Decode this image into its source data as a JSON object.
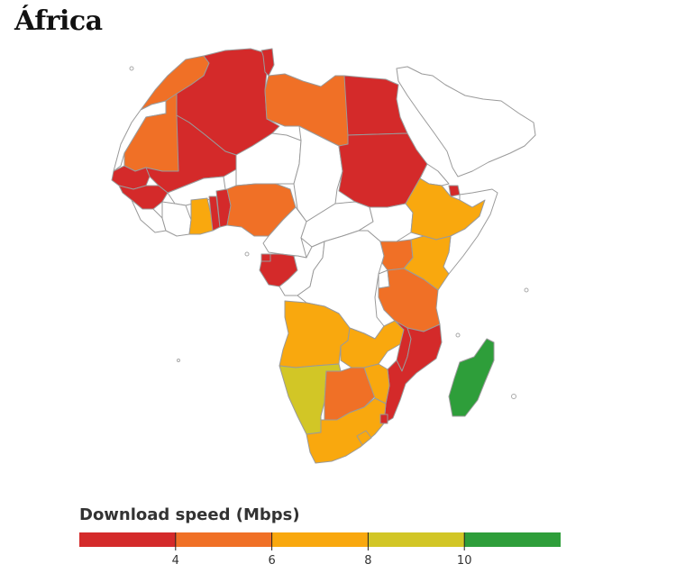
{
  "title": "África",
  "legend": {
    "title": "Download speed (Mbps)",
    "domain": [
      2,
      12
    ],
    "bins": [
      {
        "from": 2,
        "to": 4,
        "color": "#d42a2a"
      },
      {
        "from": 4,
        "to": 6,
        "color": "#f07026"
      },
      {
        "from": 6,
        "to": 8,
        "color": "#f9a80e"
      },
      {
        "from": 8,
        "to": 10,
        "color": "#d2c626"
      },
      {
        "from": 10,
        "to": 12,
        "color": "#2e9e3a"
      }
    ],
    "ticks": [
      4,
      6,
      8,
      10
    ]
  },
  "colors": {
    "no_data": "#ffffff",
    "red": "#d42a2a",
    "orange": "#f07026",
    "amber": "#f9a80e",
    "olive": "#d2c626",
    "green": "#2e9e3a",
    "border": "#9a9a9a"
  },
  "regions": [
    {
      "name": "Morocco",
      "color": "#f07026"
    },
    {
      "name": "Western Sahara",
      "color": "#ffffff"
    },
    {
      "name": "Mauritania",
      "color": "#f07026"
    },
    {
      "name": "Algeria",
      "color": "#d42a2a"
    },
    {
      "name": "Tunisia",
      "color": "#d42a2a"
    },
    {
      "name": "Libya",
      "color": "#f07026"
    },
    {
      "name": "Egypt",
      "color": "#d42a2a"
    },
    {
      "name": "Mali",
      "color": "#d42a2a"
    },
    {
      "name": "Niger",
      "color": "#ffffff"
    },
    {
      "name": "Chad",
      "color": "#ffffff"
    },
    {
      "name": "Sudan",
      "color": "#d42a2a"
    },
    {
      "name": "Senegal",
      "color": "#d42a2a"
    },
    {
      "name": "Guinea",
      "color": "#d42a2a"
    },
    {
      "name": "Sierra Leone / Liberia",
      "color": "#ffffff"
    },
    {
      "name": "Burkina Faso",
      "color": "#ffffff"
    },
    {
      "name": "Ivory Coast",
      "color": "#ffffff"
    },
    {
      "name": "Ghana",
      "color": "#f9a80e"
    },
    {
      "name": "Togo",
      "color": "#d42a2a"
    },
    {
      "name": "Benin",
      "color": "#d42a2a"
    },
    {
      "name": "Nigeria",
      "color": "#f07026"
    },
    {
      "name": "Cameroon",
      "color": "#ffffff"
    },
    {
      "name": "Central African Republic",
      "color": "#ffffff"
    },
    {
      "name": "South Sudan",
      "color": "#ffffff"
    },
    {
      "name": "Eritrea",
      "color": "#ffffff"
    },
    {
      "name": "Djibouti",
      "color": "#d42a2a"
    },
    {
      "name": "Ethiopia",
      "color": "#f9a80e"
    },
    {
      "name": "Somalia",
      "color": "#ffffff"
    },
    {
      "name": "Equatorial Guinea",
      "color": "#d42a2a"
    },
    {
      "name": "Gabon",
      "color": "#d42a2a"
    },
    {
      "name": "Congo",
      "color": "#ffffff"
    },
    {
      "name": "DR Congo",
      "color": "#ffffff"
    },
    {
      "name": "Uganda",
      "color": "#f07026"
    },
    {
      "name": "Kenya",
      "color": "#f9a80e"
    },
    {
      "name": "Rwanda / Burundi",
      "color": "#ffffff"
    },
    {
      "name": "Tanzania",
      "color": "#f07026"
    },
    {
      "name": "Angola",
      "color": "#f9a80e"
    },
    {
      "name": "Zambia",
      "color": "#f9a80e"
    },
    {
      "name": "Malawi",
      "color": "#d42a2a"
    },
    {
      "name": "Mozambique",
      "color": "#d42a2a"
    },
    {
      "name": "Namibia",
      "color": "#d2c626"
    },
    {
      "name": "Botswana",
      "color": "#f07026"
    },
    {
      "name": "Zimbabwe",
      "color": "#f9a80e"
    },
    {
      "name": "South Africa",
      "color": "#f9a80e"
    },
    {
      "name": "Lesotho",
      "color": "#f9a80e"
    },
    {
      "name": "Eswatini",
      "color": "#d42a2a"
    },
    {
      "name": "Madagascar",
      "color": "#2e9e3a"
    },
    {
      "name": "Arabian Peninsula",
      "color": "#ffffff"
    }
  ]
}
